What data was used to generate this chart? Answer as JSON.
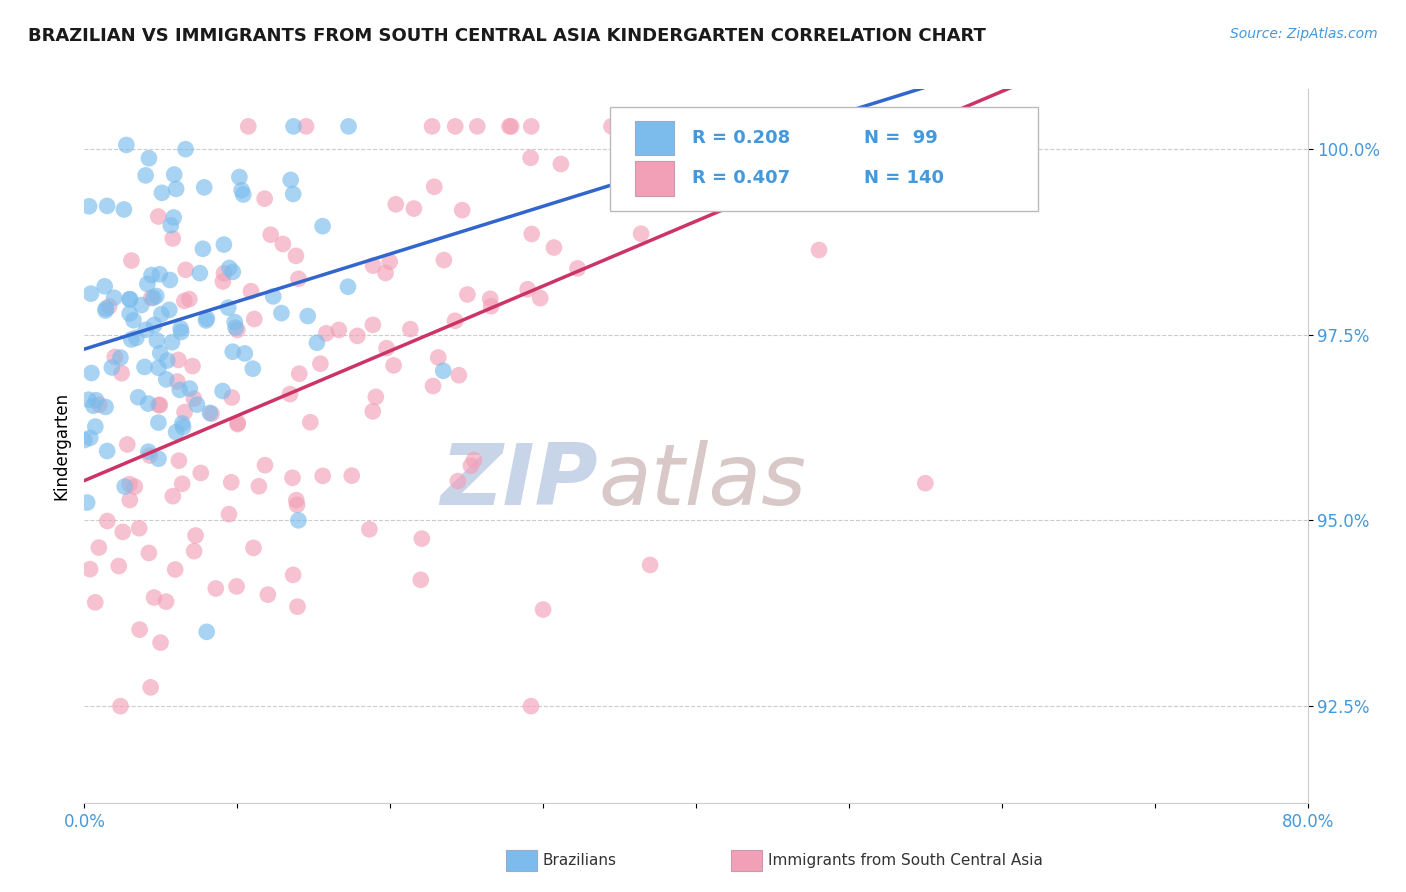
{
  "title": "BRAZILIAN VS IMMIGRANTS FROM SOUTH CENTRAL ASIA KINDERGARTEN CORRELATION CHART",
  "source": "Source: ZipAtlas.com",
  "ylabel": "Kindergarten",
  "xlim": [
    0.0,
    0.8
  ],
  "ylim": [
    0.912,
    1.008
  ],
  "xticks": [
    0.0,
    0.1,
    0.2,
    0.3,
    0.4,
    0.5,
    0.6,
    0.7,
    0.8
  ],
  "xticklabels": [
    "0.0%",
    "",
    "",
    "",
    "",
    "",
    "",
    "",
    "80.0%"
  ],
  "yticks": [
    0.925,
    0.95,
    0.975,
    1.0
  ],
  "yticklabels": [
    "92.5%",
    "95.0%",
    "97.5%",
    "100.0%"
  ],
  "blue_color": "#7BBCEC",
  "pink_color": "#F2A0B8",
  "blue_line_color": "#3366CC",
  "pink_line_color": "#CC3366",
  "watermark_text": "ZIPatlas",
  "watermark_color": "#DADEEA",
  "series1_label": "Brazilians",
  "series2_label": "Immigrants from South Central Asia",
  "blue_n": 99,
  "pink_n": 140,
  "blue_R": 0.208,
  "pink_R": 0.407,
  "title_color": "#1a1a1a",
  "axis_color": "#4499DD",
  "marker_size": 12,
  "marker_alpha": 0.65
}
